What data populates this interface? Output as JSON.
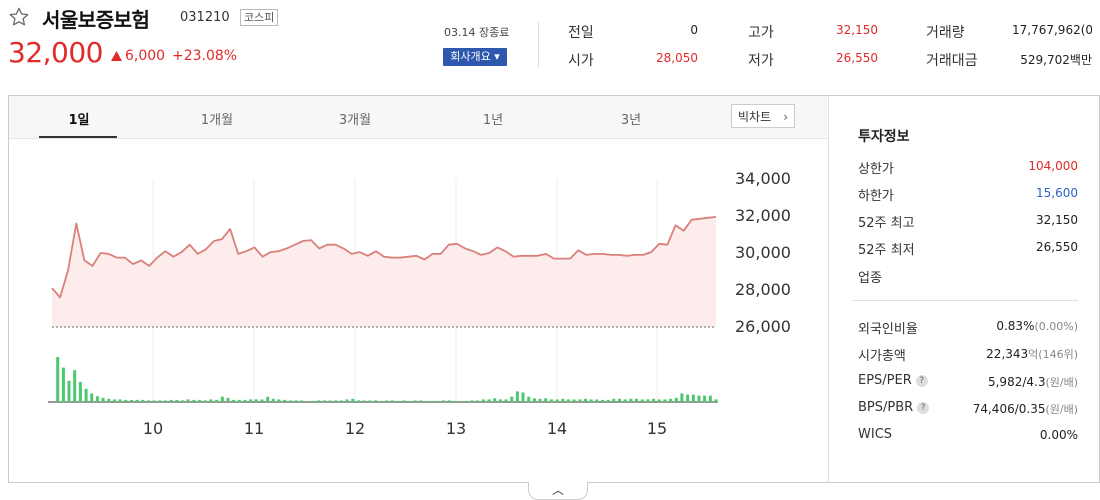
{
  "header": {
    "name": "서울보증보험",
    "code": "031210",
    "market": "코스피",
    "price": "32,000",
    "change": "6,000",
    "change_pct": "+23.08%",
    "session": "03.14 장종료",
    "overview_button": "회사개요 ▾"
  },
  "quote_summary": [
    {
      "label": "전일",
      "value": "0",
      "color": "dark"
    },
    {
      "label": "시가",
      "value": "28,050",
      "color": "red"
    },
    {
      "label": "고가",
      "value": "32,150",
      "color": "red"
    },
    {
      "label": "저가",
      "value": "26,550",
      "color": "red"
    },
    {
      "label": "거래량",
      "value": "17,767,962(0",
      "color": "dark"
    },
    {
      "label": "거래대금",
      "value": "529,702백만",
      "color": "dark"
    }
  ],
  "tabs": [
    "1일",
    "1개월",
    "3개월",
    "1년",
    "3년"
  ],
  "active_tab": "1일",
  "big_chart_button": "빅차트",
  "chart_data": {
    "type": "line",
    "title": "",
    "x_ticks": [
      "10",
      "11",
      "12",
      "13",
      "14",
      "15"
    ],
    "y_ticks": [
      "34,000",
      "32,000",
      "30,000",
      "28,000",
      "26,000"
    ],
    "ylim": [
      26000,
      34000
    ],
    "reference_price": 26000,
    "series": [
      {
        "values": [
          28100,
          27600,
          29100,
          31600,
          29600,
          29300,
          30000,
          29950,
          29750,
          29750,
          29400,
          29600,
          29300,
          29750,
          30100,
          29800,
          30050,
          30450,
          29950,
          30200,
          30650,
          30750,
          31300,
          29950,
          30100,
          30300,
          29800,
          30050,
          30100,
          30250,
          30450,
          30650,
          30700,
          30250,
          30450,
          30450,
          30250,
          29950,
          30050,
          29850,
          30100,
          29800,
          29750,
          29750,
          29800,
          29850,
          29650,
          29950,
          29950,
          30450,
          30500,
          30250,
          30100,
          29900,
          30000,
          30300,
          30100,
          29800,
          29850,
          29850,
          29850,
          29950,
          29700,
          29700,
          29700,
          30150,
          29900,
          29950,
          29950,
          29900,
          29900,
          29850,
          29900,
          29900,
          30050,
          30500,
          30450,
          31500,
          31200,
          31800,
          31850,
          31900,
          31950
        ]
      }
    ],
    "volume": [
      0,
      0.85,
      0.65,
      0.4,
      0.6,
      0.38,
      0.25,
      0.16,
      0.11,
      0.08,
      0.06,
      0.05,
      0.05,
      0.04,
      0.04,
      0.04,
      0.04,
      0.03,
      0.03,
      0.03,
      0.03,
      0.04,
      0.04,
      0.03,
      0.05,
      0.04,
      0.04,
      0.03,
      0.05,
      0.04,
      0.1,
      0.08,
      0.04,
      0.04,
      0.04,
      0.05,
      0.05,
      0.05,
      0.1,
      0.06,
      0.05,
      0.04,
      0.03,
      0.03,
      0.03,
      0.02,
      0.02,
      0.03,
      0.03,
      0.03,
      0.03,
      0.03,
      0.05,
      0.06,
      0.03,
      0.03,
      0.03,
      0.03,
      0.02,
      0.03,
      0.03,
      0.02,
      0.03,
      0.02,
      0.03,
      0.03,
      0.02,
      0.02,
      0.02,
      0.03,
      0.03,
      0.02,
      0.02,
      0.02,
      0.03,
      0.03,
      0.05,
      0.05,
      0.07,
      0.05,
      0.05,
      0.1,
      0.2,
      0.18,
      0.1,
      0.07,
      0.06,
      0.07,
      0.05,
      0.05,
      0.06,
      0.05,
      0.05,
      0.05,
      0.06,
      0.05,
      0.05,
      0.04,
      0.04,
      0.06,
      0.06,
      0.05,
      0.06,
      0.06,
      0.05,
      0.05,
      0.06,
      0.05,
      0.05,
      0.06,
      0.08,
      0.16,
      0.14,
      0.14,
      0.12,
      0.12,
      0.12,
      0.05
    ],
    "colors": {
      "line": "#d98079",
      "fill": "#fdecec",
      "volume": "#4fc76e",
      "baseline": "#666666"
    }
  },
  "invest_info": {
    "title": "투자정보",
    "items": [
      {
        "label": "상한가",
        "value": "104,000",
        "unit": "",
        "color": "red",
        "help": false
      },
      {
        "label": "하한가",
        "value": "15,600",
        "unit": "",
        "color": "blue",
        "help": false
      },
      {
        "label": "52주 최고",
        "value": "32,150",
        "unit": "",
        "color": "dark",
        "help": false
      },
      {
        "label": "52주 최저",
        "value": "26,550",
        "unit": "",
        "color": "dark",
        "help": false
      },
      {
        "label": "업종",
        "value": "",
        "unit": "",
        "color": "dark",
        "help": false
      },
      {
        "label": "외국인비율",
        "value": "0.83%",
        "unit": "(0.00%)",
        "color": "dark",
        "help": false
      },
      {
        "label": "시가총액",
        "value": "22,343",
        "unit": "억(146위)",
        "color": "dark",
        "help": false
      },
      {
        "label": "EPS/PER",
        "value": "5,982/4.3",
        "unit": "(원/배)",
        "color": "dark",
        "help": true
      },
      {
        "label": "BPS/PBR",
        "value": "74,406/0.35",
        "unit": "(원/배)",
        "color": "dark",
        "help": true
      },
      {
        "label": "WICS",
        "value": "0.00%",
        "unit": "",
        "color": "dark",
        "help": false
      }
    ]
  },
  "collapse_icon": "chevron-up-icon"
}
